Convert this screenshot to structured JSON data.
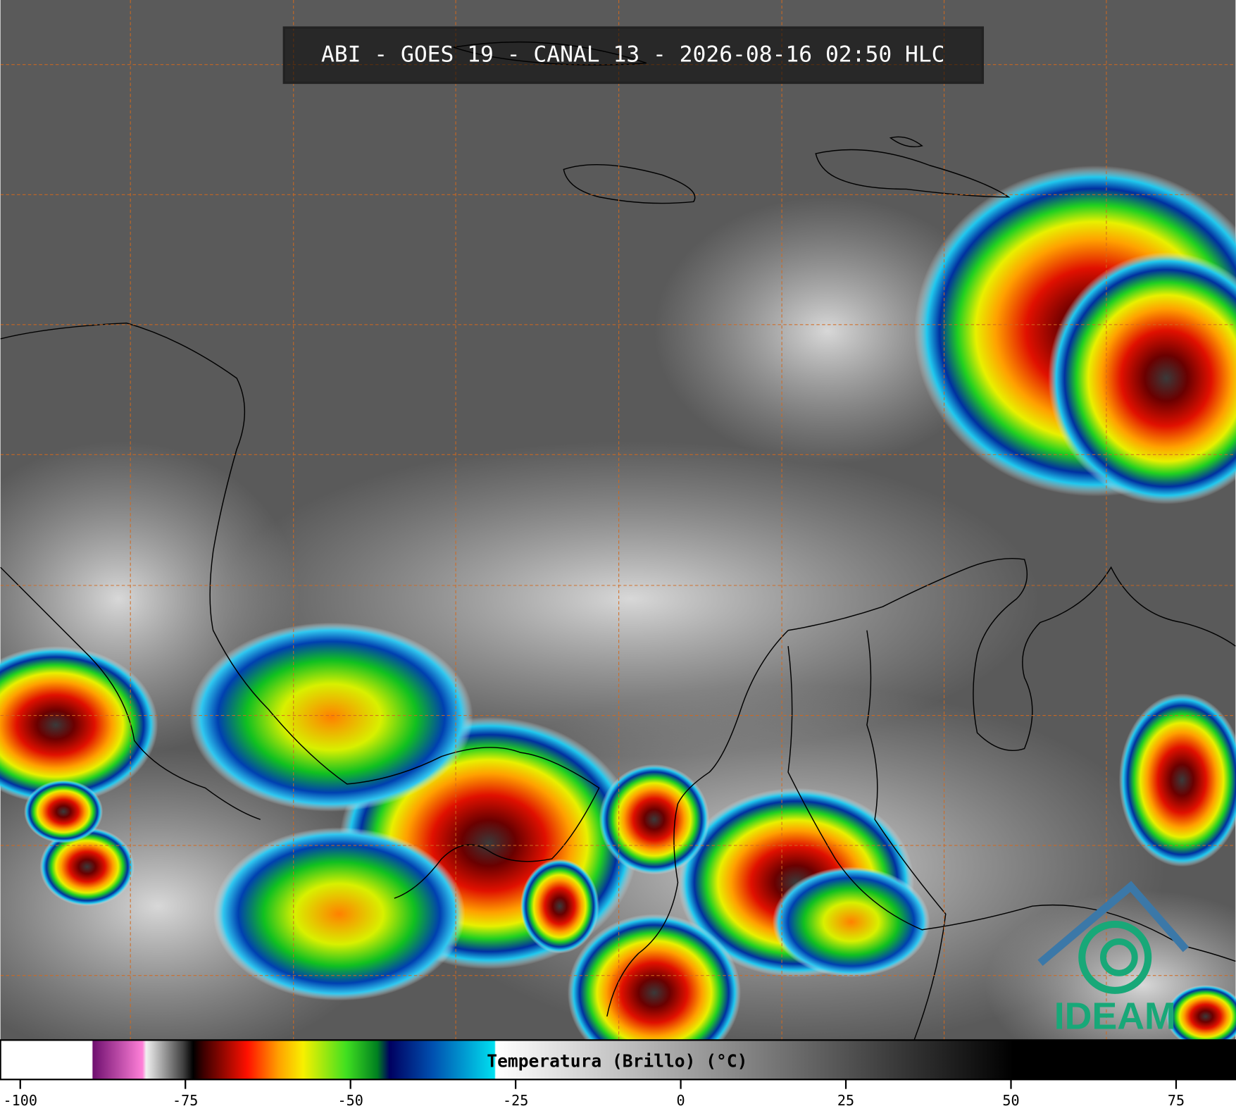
{
  "header": {
    "title": "ABI - GOES 19 - CANAL 13 - 2026-08-16 02:50 HLC"
  },
  "colorbar": {
    "label": "Temperatura (Brillo) (°C)",
    "range": [
      -103,
      84
    ],
    "ticks": [
      -100,
      -75,
      -50,
      -25,
      0,
      25,
      50,
      75
    ]
  },
  "logo": {
    "text": "IDEAM"
  }
}
